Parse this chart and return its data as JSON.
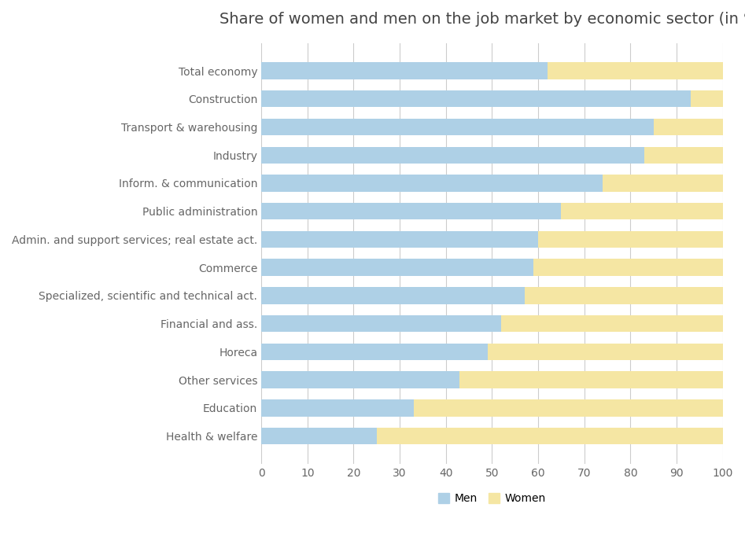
{
  "title": "Share of women and men on the job market by economic sector (in %)",
  "categories": [
    "Total economy",
    "Construction",
    "Transport & warehousing",
    "Industry",
    "Inform. & communication",
    "Public administration",
    "Admin. and support services; real estate act.",
    "Commerce",
    "Specialized, scientific and technical act.",
    "Financial and ass.",
    "Horeca",
    "Other services",
    "Education",
    "Health & welfare"
  ],
  "men_values": [
    62,
    93,
    85,
    83,
    74,
    65,
    60,
    59,
    57,
    52,
    49,
    43,
    33,
    25
  ],
  "women_values": [
    38,
    7,
    15,
    17,
    26,
    35,
    40,
    41,
    43,
    48,
    51,
    57,
    67,
    75
  ],
  "men_color": "#aed0e6",
  "women_color": "#f5e6a3",
  "background_color": "#ffffff",
  "title_fontsize": 14,
  "tick_fontsize": 10,
  "label_fontsize": 10,
  "xlim": [
    0,
    100
  ],
  "xticks": [
    0,
    10,
    20,
    30,
    40,
    50,
    60,
    70,
    80,
    90,
    100
  ],
  "grid_color": "#cccccc",
  "bar_height": 0.6
}
